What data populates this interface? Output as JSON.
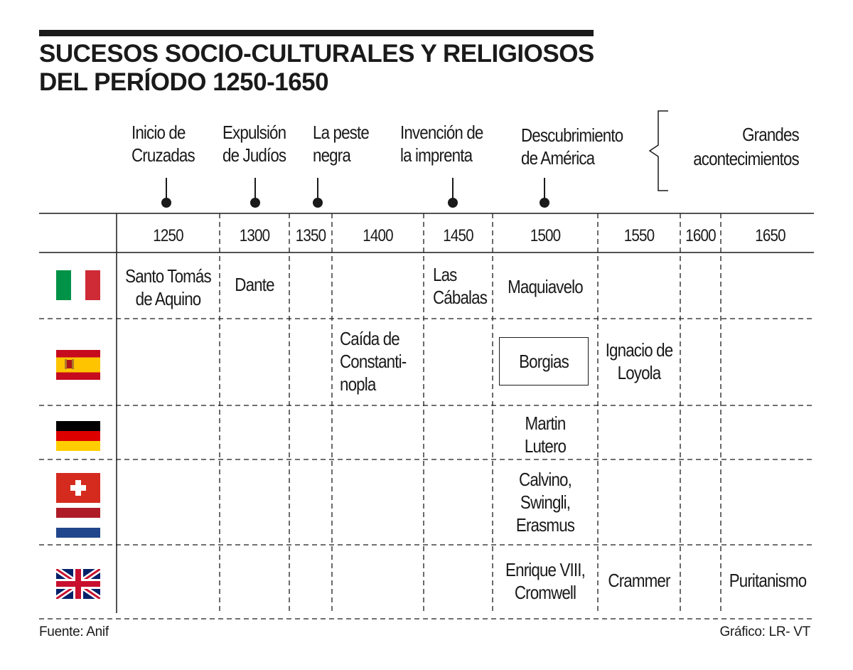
{
  "title": {
    "line1": "SUCESOS SOCIO-CULTURALES Y RELIGIOSOS",
    "line2": "DEL PERÍODO 1250-1650"
  },
  "events": [
    {
      "line1": "Inicio de",
      "line2": "Cruzadas"
    },
    {
      "line1": "Expulsión",
      "line2": "de Judíos"
    },
    {
      "line1": "La peste",
      "line2": "negra"
    },
    {
      "line1": "Invención de",
      "line2": "la imprenta"
    },
    {
      "line1": "Descubrimiento",
      "line2": "de América"
    }
  ],
  "legend": {
    "line1": "Grandes",
    "line2": "acontecimientos"
  },
  "years": [
    "1250",
    "1300",
    "1350",
    "1400",
    "1450",
    "1500",
    "1550",
    "1600",
    "1650"
  ],
  "rows": [
    {
      "flags": [
        "italy-flag"
      ],
      "cells": [
        {
          "col": "1250",
          "lines": [
            "Santo Tomás",
            "de Aquino"
          ]
        },
        {
          "col": "1300",
          "lines": [
            "Dante"
          ]
        },
        {
          "col": "1450",
          "lines": [
            "Las",
            "Cábalas"
          ]
        },
        {
          "col": "1500",
          "lines": [
            "Maquiavelo"
          ]
        }
      ]
    },
    {
      "flags": [
        "spain-flag"
      ],
      "cells": [
        {
          "col": "1400",
          "lines": [
            "Caída de",
            "Constanti-",
            "nopla"
          ]
        },
        {
          "col": "1500",
          "lines": [
            "Borgias"
          ],
          "boxed": true
        },
        {
          "col": "1550",
          "lines": [
            "Ignacio de",
            "Loyola"
          ]
        }
      ]
    },
    {
      "flags": [
        "germany-flag"
      ],
      "cells": [
        {
          "col": "1500",
          "lines": [
            "Martin",
            "Lutero"
          ]
        }
      ]
    },
    {
      "flags": [
        "switzerland-flag",
        "netherlands-flag"
      ],
      "cells": [
        {
          "col": "1500",
          "lines": [
            "Calvino,",
            "Swingli,",
            "Erasmus"
          ]
        }
      ]
    },
    {
      "flags": [
        "united-kingdom-flag"
      ],
      "cells": [
        {
          "col": "1500",
          "lines": [
            "Enrique VIII,",
            "Cromwell"
          ]
        },
        {
          "col": "1550",
          "lines": [
            "Crammer"
          ]
        },
        {
          "col": "1650",
          "lines": [
            "Puritanismo"
          ]
        }
      ]
    }
  ],
  "footer": {
    "source": "Fuente: Anif",
    "credit": "Gráfico: LR- VT"
  },
  "colors": {
    "ink": "#1a1a1a",
    "italy": [
      "#009246",
      "#ffffff",
      "#ce2b37"
    ],
    "spain": [
      "#c60b1e",
      "#ffc400"
    ],
    "germany": [
      "#000000",
      "#dd0000",
      "#ffce00"
    ],
    "switzerland": "#d52b1e",
    "netherlands": [
      "#ae1c28",
      "#ffffff",
      "#21468b"
    ],
    "uk": [
      "#012169",
      "#ffffff",
      "#c8102e"
    ]
  }
}
